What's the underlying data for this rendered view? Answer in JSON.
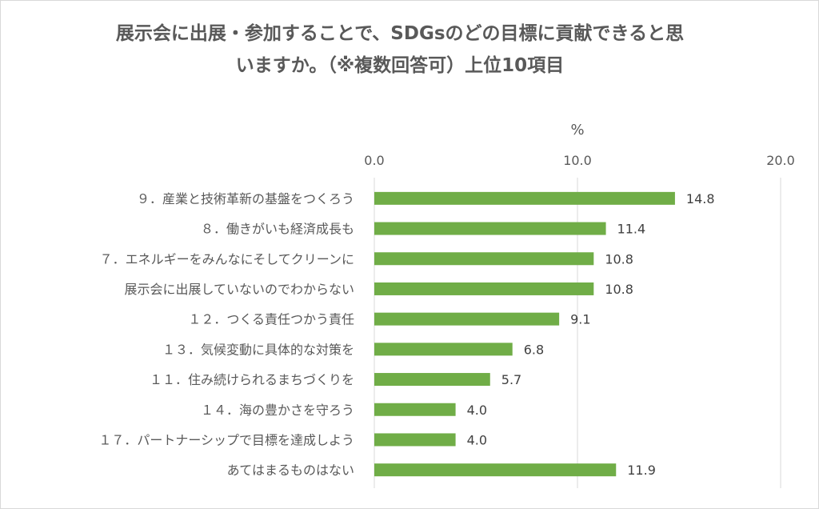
{
  "title_lines": [
    "展示会に出展・参加することで、SDGsのどの目標に貢献できると思",
    "いますか。（※複数回答可）上位10項目"
  ],
  "chart_data": {
    "type": "bar",
    "orientation": "horizontal",
    "unit": "%",
    "xlim": [
      0,
      20
    ],
    "ticks": [
      0,
      10,
      20
    ],
    "tick_labels": [
      "0.0",
      "10.0",
      "20.0"
    ],
    "axis_position": "top",
    "grid": true,
    "bar_color": "#70ad47",
    "categories": [
      "９．産業と技術革新の基盤をつくろう",
      "８．働きがいも経済成長も",
      "７．エネルギーをみんなにそしてクリーンに",
      "展示会に出展していないのでわからない",
      "１２．つくる責任つかう責任",
      "１３．気候変動に具体的な対策を",
      "１１．住み続けられるまちづくりを",
      "１４．海の豊かさを守ろう",
      "１７．パートナーシップで目標を達成しよう",
      "あてはまるものはない"
    ],
    "values": [
      14.8,
      11.4,
      10.8,
      10.8,
      9.1,
      6.8,
      5.7,
      4.0,
      4.0,
      11.9
    ],
    "value_labels": [
      "14.8",
      "11.4",
      "10.8",
      "10.8",
      "9.1",
      "6.8",
      "5.7",
      "4.0",
      "4.0",
      "11.9"
    ]
  }
}
